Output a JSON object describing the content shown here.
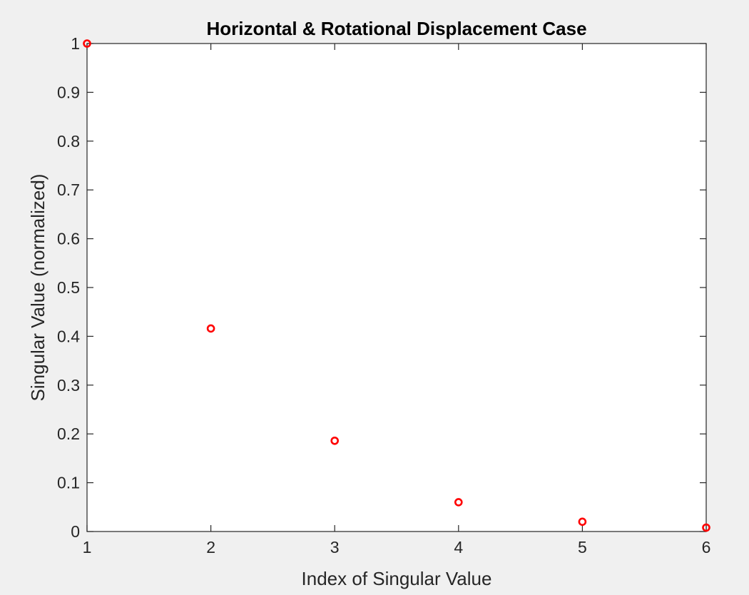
{
  "chart_data": {
    "type": "scatter",
    "title": "Horizontal & Rotational Displacement Case",
    "xlabel": "Index of Singular Value",
    "ylabel": "Singular Value (normalized)",
    "xlim": [
      1,
      6
    ],
    "ylim": [
      0,
      1
    ],
    "xticks": [
      1,
      2,
      3,
      4,
      5,
      6
    ],
    "xtick_labels": [
      "1",
      "2",
      "3",
      "4",
      "5",
      "6"
    ],
    "yticks": [
      0,
      0.1,
      0.2,
      0.3,
      0.4,
      0.5,
      0.6,
      0.7,
      0.8,
      0.9,
      1
    ],
    "ytick_labels": [
      "0",
      "0.1",
      "0.2",
      "0.3",
      "0.4",
      "0.5",
      "0.6",
      "0.7",
      "0.8",
      "0.9",
      "1"
    ],
    "grid": false,
    "marker": "circle-open",
    "series": [
      {
        "color": "#ff0000",
        "x": [
          1,
          2,
          3,
          4,
          5,
          6
        ],
        "y": [
          1.0,
          0.416,
          0.186,
          0.06,
          0.02,
          0.008
        ]
      }
    ]
  },
  "colors": {
    "figure_background": "#f0f0f0",
    "axes_background": "#ffffff",
    "axes_line": "#262626",
    "marker": "#ff0000"
  }
}
